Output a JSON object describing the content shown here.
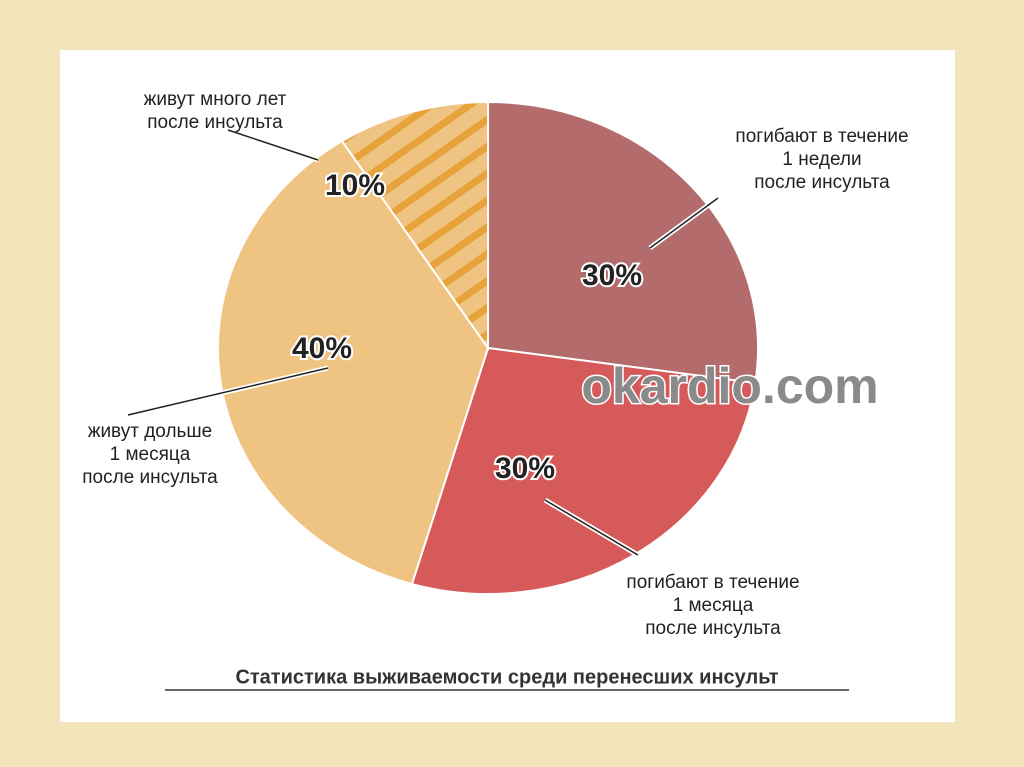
{
  "chart_data": {
    "type": "pie",
    "title": "Статистика выживаемости среди перенесших инсульт",
    "watermark": "okardio.com",
    "slices": [
      {
        "label": [
          "погибают в течение",
          "1 недели",
          "после инсульта"
        ],
        "value": 30,
        "value_label": "30%",
        "color": "#b46b6b"
      },
      {
        "label": [
          "погибают в течение",
          "1 месяца",
          "после инсульта"
        ],
        "value": 30,
        "value_label": "30%",
        "color": "#d65a5a"
      },
      {
        "label": [
          "живут дольше",
          "1 месяца",
          "после инсульта"
        ],
        "value": 40,
        "value_label": "40%",
        "color": "#efc482"
      },
      {
        "label": [
          "живут много лет",
          "после инсульта"
        ],
        "value": 10,
        "value_label": "10%",
        "color": "#efc482",
        "hatch": "#e8a23a"
      }
    ]
  }
}
